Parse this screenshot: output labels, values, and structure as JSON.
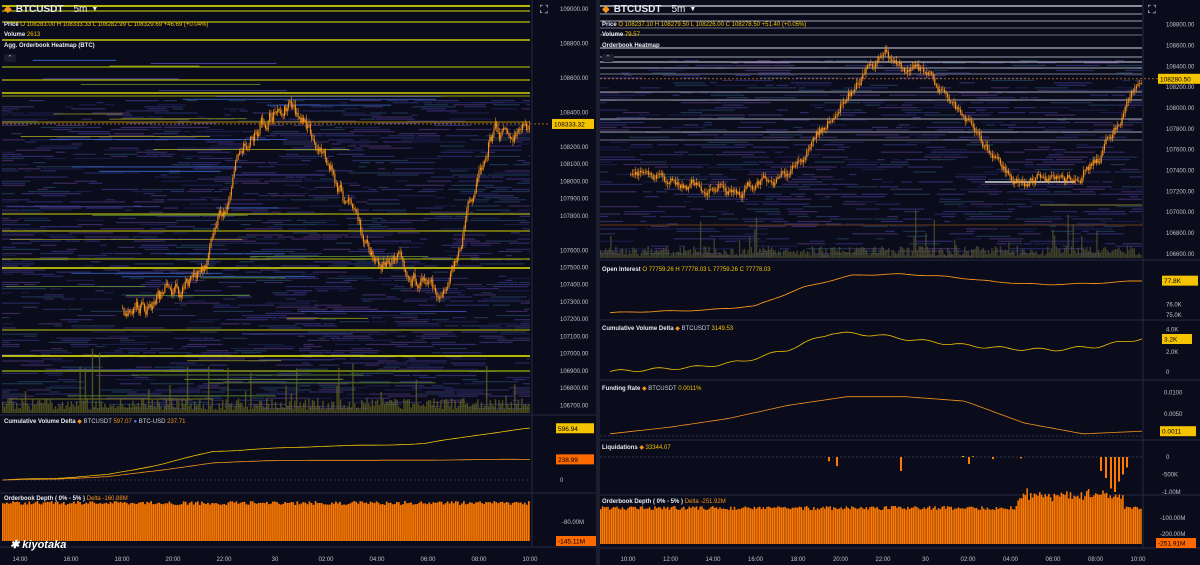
{
  "colors": {
    "bg": "#0a0c1c",
    "grid": "#161a2c",
    "candle": "#f7931a",
    "yellow": "#f5c400",
    "orange": "#ff8c1a",
    "bar": "#ff7a00"
  },
  "left": {
    "symbol": "BTCUSDT",
    "timeframe": "5m",
    "price_legend": {
      "label": "Price",
      "o": "108283.00",
      "h": "108333.33",
      "l": "108282.99",
      "c": "108329.69",
      "chg": "+46.69 (+0.04%)"
    },
    "volume_legend": {
      "label": "Volume",
      "value": "2613"
    },
    "heatmap_title": "Agg. Orderbook Heatmap (BTC)",
    "cvd_legend": {
      "title": "Cumulative Volume Delta",
      "s1_name": "BTCUSDT",
      "s1_val": "597.07",
      "s2_name": "BTC-USD",
      "s2_val": "237.71"
    },
    "depth_legend": {
      "title": "Orderbook Depth ( 0% - 5% )",
      "delta": "Delta -160.88M"
    },
    "logo": "kiyotaka",
    "price_tag": "108333.32",
    "cvd_tags": [
      "596.94",
      "238.99"
    ],
    "depth_tag": "-145.11M",
    "depth_axis": [
      "-80.00M"
    ],
    "cvd_axis": [
      "0"
    ],
    "price_axis": [
      "109000.00",
      "108800.00",
      "108600.00",
      "108400.00",
      "108200.00",
      "108100.00",
      "108000.00",
      "107900.00",
      "107800.00",
      "107600.00",
      "107500.00",
      "107400.00",
      "107300.00",
      "107200.00",
      "107100.00",
      "107000.00",
      "106900.00",
      "106800.00",
      "106700.00"
    ],
    "time_axis": [
      "14:00",
      "16:00",
      "18:00",
      "20:00",
      "22:00",
      "30",
      "02:00",
      "04:00",
      "06:00",
      "08:00",
      "10:00"
    ]
  },
  "right": {
    "symbol": "BTCUSDT",
    "timeframe": "5m",
    "price_legend": {
      "label": "Price",
      "o": "108237.10",
      "h": "108279.50",
      "l": "108226.00",
      "c": "108278.50",
      "chg": "+51.40 (+0.05%)"
    },
    "volume_legend": {
      "label": "Volume",
      "value": "79.57"
    },
    "heatmap_title": "Orderbook Heatmap",
    "price_tag": "108280.50",
    "price_axis": [
      "108800.00",
      "108600.00",
      "108400.00",
      "108200.00",
      "108000.00",
      "107800.00",
      "107600.00",
      "107400.00",
      "107200.00",
      "107000.00",
      "106800.00",
      "106600.00"
    ],
    "oi_legend": {
      "title": "Open Interest",
      "o": "77759.26",
      "h": "77778.03",
      "l": "77759.26",
      "c": "77778.03"
    },
    "oi_axis": [
      "77.8K",
      "76.0K",
      "75.0K"
    ],
    "cvd_legend": {
      "title": "Cumulative Volume Delta",
      "name": "BTCUSDT",
      "val": "3149.53"
    },
    "cvd_axis": [
      "4.0K",
      "3.2K",
      "2.0K",
      "0"
    ],
    "funding_legend": {
      "title": "Funding Rate",
      "name": "BTCUSDT",
      "val": "0.0011%"
    },
    "funding_axis": [
      "0.0100",
      "0.0050",
      "0.0011",
      "0"
    ],
    "liq_legend": {
      "title": "Liquidations",
      "val": "33344.07"
    },
    "liq_axis": [
      "0",
      "-500K",
      "-1.00M"
    ],
    "depth_legend": {
      "title": "Orderbook Depth ( 0% - 5% )",
      "delta": "Delta -251.92M"
    },
    "depth_axis": [
      "-100.00M",
      "-200.00M",
      "-251.91M"
    ],
    "time_axis": [
      "10:00",
      "12:00",
      "14:00",
      "16:00",
      "18:00",
      "20:00",
      "22:00",
      "30",
      "02:00",
      "04:00",
      "06:00",
      "08:00",
      "10:00"
    ]
  },
  "chart_data": [
    {
      "type": "line",
      "title": "BTCUSDT 5m Price (left)",
      "x": [
        "14:00",
        "16:00",
        "18:00",
        "20:00",
        "22:00",
        "30",
        "02:00",
        "04:00",
        "06:00",
        "08:00",
        "10:00"
      ],
      "y": [
        107250,
        107320,
        107430,
        108200,
        108480,
        108150,
        107600,
        107450,
        107350,
        108250,
        108330
      ],
      "ylim": [
        106650,
        109000
      ]
    },
    {
      "type": "line",
      "title": "Cumulative Volume Delta (left)",
      "series": [
        {
          "name": "BTCUSDT",
          "values": [
            0,
            20,
            60,
            180,
            330,
            360,
            390,
            400,
            420,
            520,
            597
          ]
        },
        {
          "name": "BTC-USD",
          "values": [
            0,
            10,
            40,
            110,
            200,
            220,
            230,
            225,
            230,
            235,
            238
          ]
        }
      ]
    },
    {
      "type": "bar",
      "title": "Orderbook Depth (left)",
      "values": [
        -145,
        -150,
        -148,
        -145,
        -146,
        -147,
        -145,
        -144,
        -145,
        -145,
        -145
      ]
    },
    {
      "type": "line",
      "title": "BTCUSDT 5m Price (right)",
      "x": [
        "10:00",
        "12:00",
        "14:00",
        "16:00",
        "18:00",
        "20:00",
        "22:00",
        "30",
        "02:00",
        "04:00",
        "06:00",
        "08:00",
        "10:00"
      ],
      "y": [
        107380,
        107300,
        107200,
        107250,
        107400,
        108150,
        108450,
        108300,
        107800,
        107350,
        107300,
        107500,
        108280
      ],
      "ylim": [
        106550,
        108950
      ]
    },
    {
      "type": "line",
      "title": "Open Interest",
      "values": [
        75.4,
        75.5,
        75.6,
        75.9,
        77.3,
        78.2,
        78.3,
        78.1,
        77.7,
        77.5,
        77.6,
        77.8
      ]
    },
    {
      "type": "line",
      "title": "Funding Rate",
      "values": [
        0.0005,
        0.002,
        0.004,
        0.007,
        0.009,
        0.009,
        0.008,
        0.003,
        0.0005,
        0.0011
      ]
    },
    {
      "type": "bar",
      "title": "Liquidations",
      "values": [
        0,
        0,
        0,
        0,
        0,
        0,
        -200,
        -350,
        -450,
        -700,
        -1000,
        -400
      ]
    }
  ]
}
